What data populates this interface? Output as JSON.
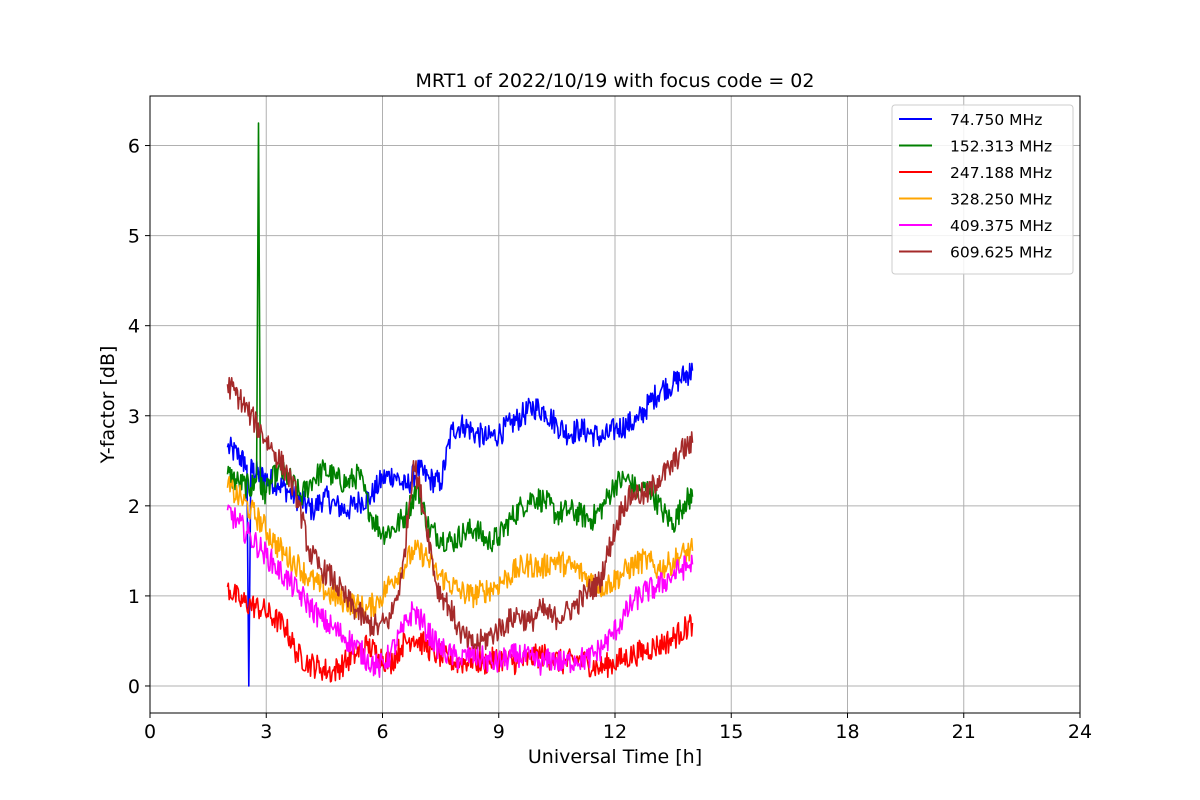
{
  "chart_data": {
    "type": "line",
    "title": "MRT1 of 2022/10/19 with focus code = 02",
    "xlabel": "Universal Time [h]",
    "ylabel": "Y-factor [dB]",
    "xlim": [
      0,
      24
    ],
    "ylim": [
      -0.3,
      6.55
    ],
    "xticks": [
      0,
      3,
      6,
      9,
      12,
      15,
      18,
      21,
      24
    ],
    "yticks": [
      0,
      1,
      2,
      3,
      4,
      5,
      6
    ],
    "grid": true,
    "legend_position": "top-right",
    "series": [
      {
        "name": " 74.750 MHz",
        "color": "#0000ff",
        "x": [
          2.0,
          2.3,
          2.5,
          2.55,
          2.6,
          2.8,
          3.0,
          3.3,
          3.6,
          3.9,
          4.2,
          4.5,
          4.8,
          5.1,
          5.4,
          5.7,
          6.0,
          6.3,
          6.6,
          6.9,
          7.2,
          7.5,
          7.8,
          8.1,
          8.4,
          8.7,
          9.0,
          9.3,
          9.6,
          9.9,
          10.2,
          10.5,
          10.8,
          11.1,
          11.4,
          11.7,
          12.0,
          12.3,
          12.6,
          12.9,
          13.2,
          13.5,
          13.8,
          14.0
        ],
        "y": [
          2.65,
          2.55,
          2.45,
          0.0,
          2.4,
          2.35,
          2.3,
          2.25,
          2.15,
          2.05,
          1.95,
          2.1,
          2.0,
          1.95,
          2.05,
          2.1,
          2.3,
          2.35,
          2.2,
          2.4,
          2.3,
          2.25,
          2.85,
          2.9,
          2.8,
          2.75,
          2.8,
          2.9,
          3.0,
          3.1,
          3.05,
          2.9,
          2.8,
          2.85,
          2.8,
          2.75,
          2.85,
          2.9,
          2.95,
          3.15,
          3.3,
          3.35,
          3.45,
          3.5
        ]
      },
      {
        "name": "152.313 MHz",
        "color": "#008000",
        "x": [
          2.0,
          2.3,
          2.6,
          2.75,
          2.8,
          2.85,
          3.0,
          3.3,
          3.6,
          3.9,
          4.2,
          4.5,
          4.8,
          5.1,
          5.4,
          5.7,
          6.0,
          6.3,
          6.6,
          6.9,
          7.2,
          7.5,
          7.8,
          8.1,
          8.4,
          8.7,
          9.0,
          9.3,
          9.6,
          9.9,
          10.2,
          10.5,
          10.8,
          11.1,
          11.4,
          11.7,
          12.0,
          12.3,
          12.6,
          12.9,
          13.2,
          13.5,
          13.8,
          14.0
        ],
        "y": [
          2.35,
          2.25,
          2.2,
          2.3,
          6.25,
          2.2,
          2.15,
          2.4,
          2.3,
          2.1,
          2.3,
          2.4,
          2.3,
          2.25,
          2.35,
          1.9,
          1.7,
          1.75,
          1.9,
          2.2,
          1.75,
          1.65,
          1.6,
          1.7,
          1.75,
          1.6,
          1.65,
          1.85,
          2.0,
          2.1,
          2.05,
          1.9,
          1.95,
          1.9,
          1.85,
          2.0,
          2.25,
          2.3,
          2.15,
          2.2,
          1.95,
          1.8,
          2.05,
          2.1
        ]
      },
      {
        "name": "247.188 MHz",
        "color": "#ff0000",
        "x": [
          2.0,
          2.3,
          2.6,
          2.9,
          3.2,
          3.5,
          3.8,
          4.1,
          4.4,
          4.7,
          5.0,
          5.3,
          5.6,
          5.9,
          6.2,
          6.5,
          6.8,
          7.1,
          7.4,
          7.7,
          8.0,
          8.3,
          8.6,
          8.9,
          9.2,
          9.5,
          9.8,
          10.1,
          10.4,
          10.7,
          11.0,
          11.3,
          11.6,
          11.9,
          12.2,
          12.5,
          12.8,
          13.1,
          13.4,
          13.7,
          14.0
        ],
        "y": [
          1.1,
          0.95,
          0.9,
          0.85,
          0.75,
          0.65,
          0.35,
          0.25,
          0.2,
          0.15,
          0.25,
          0.35,
          0.45,
          0.35,
          0.25,
          0.45,
          0.55,
          0.45,
          0.35,
          0.3,
          0.25,
          0.3,
          0.25,
          0.3,
          0.3,
          0.25,
          0.3,
          0.35,
          0.3,
          0.25,
          0.3,
          0.25,
          0.2,
          0.25,
          0.3,
          0.35,
          0.4,
          0.45,
          0.5,
          0.6,
          0.7
        ]
      },
      {
        "name": "328.250 MHz",
        "color": "#ffa500",
        "x": [
          2.0,
          2.3,
          2.6,
          2.9,
          3.2,
          3.5,
          3.8,
          4.1,
          4.4,
          4.7,
          5.0,
          5.3,
          5.6,
          5.9,
          6.2,
          6.5,
          6.8,
          7.1,
          7.4,
          7.7,
          8.0,
          8.3,
          8.6,
          8.9,
          9.2,
          9.5,
          9.8,
          10.1,
          10.4,
          10.7,
          11.0,
          11.3,
          11.6,
          11.9,
          12.2,
          12.5,
          12.8,
          13.1,
          13.4,
          13.7,
          14.0
        ],
        "y": [
          2.2,
          2.1,
          1.95,
          1.8,
          1.6,
          1.45,
          1.35,
          1.2,
          1.1,
          1.0,
          0.95,
          0.9,
          0.85,
          0.95,
          1.15,
          1.3,
          1.5,
          1.45,
          1.25,
          1.15,
          1.05,
          1.0,
          1.05,
          1.1,
          1.2,
          1.3,
          1.35,
          1.3,
          1.4,
          1.35,
          1.3,
          1.2,
          1.1,
          1.15,
          1.25,
          1.35,
          1.4,
          1.3,
          1.35,
          1.45,
          1.5
        ]
      },
      {
        "name": "409.375 MHz",
        "color": "#ff00ff",
        "x": [
          2.0,
          2.3,
          2.6,
          2.9,
          3.2,
          3.5,
          3.8,
          4.1,
          4.4,
          4.7,
          5.0,
          5.3,
          5.6,
          5.9,
          6.2,
          6.5,
          6.8,
          7.1,
          7.4,
          7.7,
          8.0,
          8.3,
          8.6,
          8.9,
          9.2,
          9.5,
          9.8,
          10.1,
          10.4,
          10.7,
          11.0,
          11.3,
          11.6,
          11.9,
          12.2,
          12.5,
          12.8,
          13.1,
          13.4,
          13.7,
          14.0
        ],
        "y": [
          1.95,
          1.8,
          1.65,
          1.5,
          1.35,
          1.2,
          1.05,
          0.9,
          0.75,
          0.65,
          0.55,
          0.45,
          0.3,
          0.2,
          0.35,
          0.6,
          0.85,
          0.65,
          0.45,
          0.35,
          0.3,
          0.35,
          0.3,
          0.25,
          0.3,
          0.35,
          0.3,
          0.25,
          0.3,
          0.25,
          0.3,
          0.3,
          0.4,
          0.55,
          0.75,
          0.95,
          1.05,
          1.1,
          1.2,
          1.3,
          1.35
        ]
      },
      {
        "name": "609.625 MHz",
        "color": "#a52a2a",
        "x": [
          2.0,
          2.3,
          2.6,
          2.9,
          3.2,
          3.5,
          3.8,
          4.1,
          4.4,
          4.7,
          5.0,
          5.3,
          5.6,
          5.9,
          6.2,
          6.5,
          6.8,
          7.1,
          7.4,
          7.7,
          8.0,
          8.3,
          8.6,
          8.9,
          9.2,
          9.5,
          9.8,
          10.1,
          10.4,
          10.7,
          11.0,
          11.3,
          11.6,
          11.9,
          12.2,
          12.5,
          12.8,
          13.1,
          13.4,
          13.7,
          14.0
        ],
        "y": [
          3.35,
          3.2,
          3.0,
          2.8,
          2.6,
          2.4,
          2.1,
          1.5,
          1.3,
          1.2,
          1.0,
          0.85,
          0.7,
          0.65,
          0.75,
          1.2,
          2.5,
          1.9,
          1.1,
          0.9,
          0.6,
          0.45,
          0.5,
          0.6,
          0.7,
          0.8,
          0.7,
          0.85,
          0.75,
          0.8,
          0.9,
          1.05,
          1.15,
          1.6,
          2.0,
          2.15,
          2.1,
          2.3,
          2.4,
          2.6,
          2.7
        ]
      }
    ]
  }
}
